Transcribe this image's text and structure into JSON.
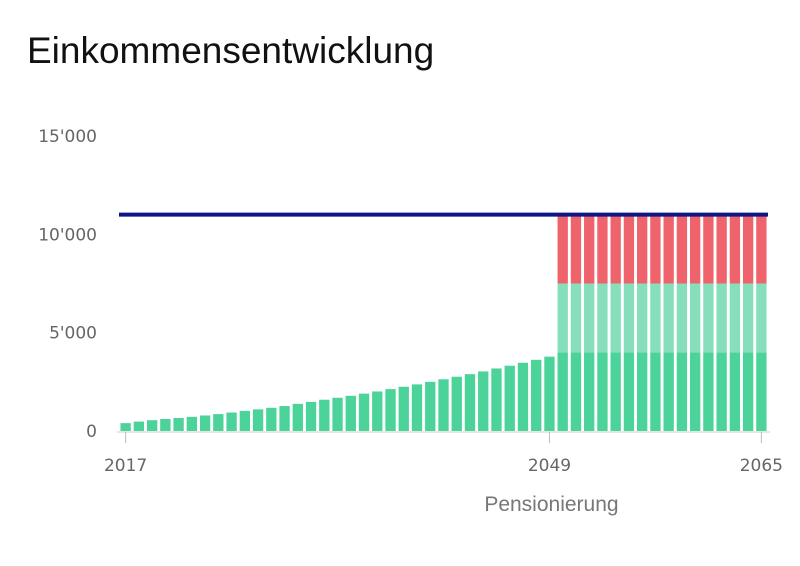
{
  "chart_title": "Einkommensentwicklung",
  "chart_data": {
    "type": "bar",
    "stacked": true,
    "title": "Einkommensentwicklung",
    "xlabel": "",
    "ylabel": "",
    "ylim": [
      0,
      15000
    ],
    "y_ticks": [
      "0",
      "5'000",
      "10'000",
      "15'000"
    ],
    "y_tick_values": [
      0,
      5000,
      10000,
      15000
    ],
    "x_ticks": [
      "2017",
      "2049",
      "2065"
    ],
    "x_tick_values": [
      2017,
      2049,
      2065
    ],
    "annotation": "Pensionierung",
    "grid": false,
    "legend": "none",
    "colors": {
      "base": "#4cd39a",
      "middle": "#86dfba",
      "gap": "#ef646c",
      "target": "#0f1685"
    },
    "target_line": 11000,
    "x": [
      2017,
      2018,
      2019,
      2020,
      2021,
      2022,
      2023,
      2024,
      2025,
      2026,
      2027,
      2028,
      2029,
      2030,
      2031,
      2032,
      2033,
      2034,
      2035,
      2036,
      2037,
      2038,
      2039,
      2040,
      2041,
      2042,
      2043,
      2044,
      2045,
      2046,
      2047,
      2048,
      2049,
      2050,
      2051,
      2052,
      2053,
      2054,
      2055,
      2056,
      2057,
      2058,
      2059,
      2060,
      2061,
      2062,
      2063,
      2064,
      2065
    ],
    "series": [
      {
        "values": [
          400,
          480,
          550,
          610,
          660,
          720,
          790,
          860,
          940,
          1020,
          1100,
          1180,
          1270,
          1380,
          1480,
          1590,
          1690,
          1790,
          1900,
          2010,
          2130,
          2250,
          2370,
          2500,
          2630,
          2760,
          2890,
          3030,
          3180,
          3320,
          3470,
          3620,
          3780,
          4000,
          4000,
          4000,
          4000,
          4000,
          4000,
          4000,
          4000,
          4000,
          4000,
          4000,
          4000,
          4000,
          4000,
          4000,
          4000
        ]
      },
      {
        "values": [
          0,
          0,
          0,
          0,
          0,
          0,
          0,
          0,
          0,
          0,
          0,
          0,
          0,
          0,
          0,
          0,
          0,
          0,
          0,
          0,
          0,
          0,
          0,
          0,
          0,
          0,
          0,
          0,
          0,
          0,
          0,
          0,
          0,
          3500,
          3500,
          3500,
          3500,
          3500,
          3500,
          3500,
          3500,
          3500,
          3500,
          3500,
          3500,
          3500,
          3500,
          3500,
          3500
        ]
      },
      {
        "values": [
          0,
          0,
          0,
          0,
          0,
          0,
          0,
          0,
          0,
          0,
          0,
          0,
          0,
          0,
          0,
          0,
          0,
          0,
          0,
          0,
          0,
          0,
          0,
          0,
          0,
          0,
          0,
          0,
          0,
          0,
          0,
          0,
          0,
          3500,
          3500,
          3500,
          3500,
          3500,
          3500,
          3500,
          3500,
          3500,
          3500,
          3500,
          3500,
          3500,
          3500,
          3500,
          3500
        ]
      }
    ]
  }
}
